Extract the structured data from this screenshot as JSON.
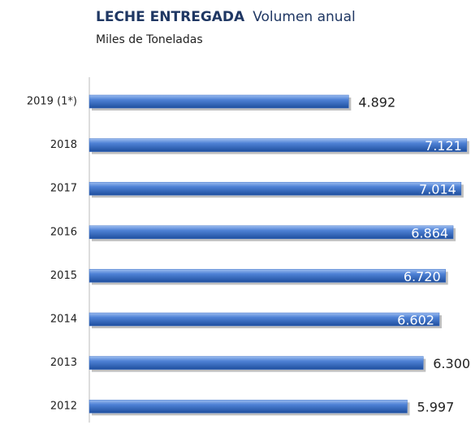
{
  "chart_data": {
    "type": "barh",
    "title": "LECHE ENTREGADA",
    "title_suffix": "Volumen anual",
    "subtitle": "Miles de Toneladas",
    "categories": [
      "2019 (1*)",
      "2018",
      "2017",
      "2016",
      "2015",
      "2014",
      "2013",
      "2012"
    ],
    "values": [
      4892,
      7121,
      7014,
      6864,
      6720,
      6602,
      6300,
      5997
    ],
    "value_labels": [
      "4.892",
      "7.121",
      "7.014",
      "6.864",
      "6.720",
      "6.602",
      "6.300",
      "5.997"
    ],
    "color": "#3b6fc6",
    "xlim": [
      0,
      7200
    ]
  }
}
